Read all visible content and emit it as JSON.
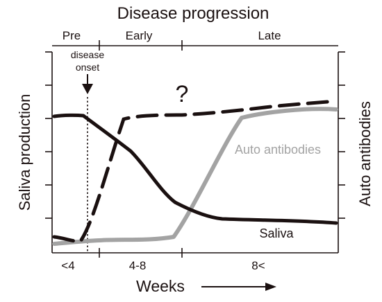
{
  "title": "Disease progression",
  "stages": [
    "Pre",
    "Early",
    "Late"
  ],
  "onset_label": [
    "disease",
    "onset"
  ],
  "question_mark": "?",
  "y_left_label": "Saliva production",
  "y_right_label": "Auto antibodies",
  "x_label": "Weeks",
  "week_labels": [
    "<4",
    "4-8",
    "8<"
  ],
  "series": [
    {
      "name": "Saliva",
      "color": "#1a1010",
      "style": "solid"
    },
    {
      "name": "Auto antibodies",
      "color": "#a3a3a3",
      "style": "solid"
    },
    {
      "name": "",
      "color": "#1a1010",
      "style": "dashed"
    }
  ],
  "colors": {
    "axis": "#1a1010",
    "arrow": "#1a1010"
  }
}
